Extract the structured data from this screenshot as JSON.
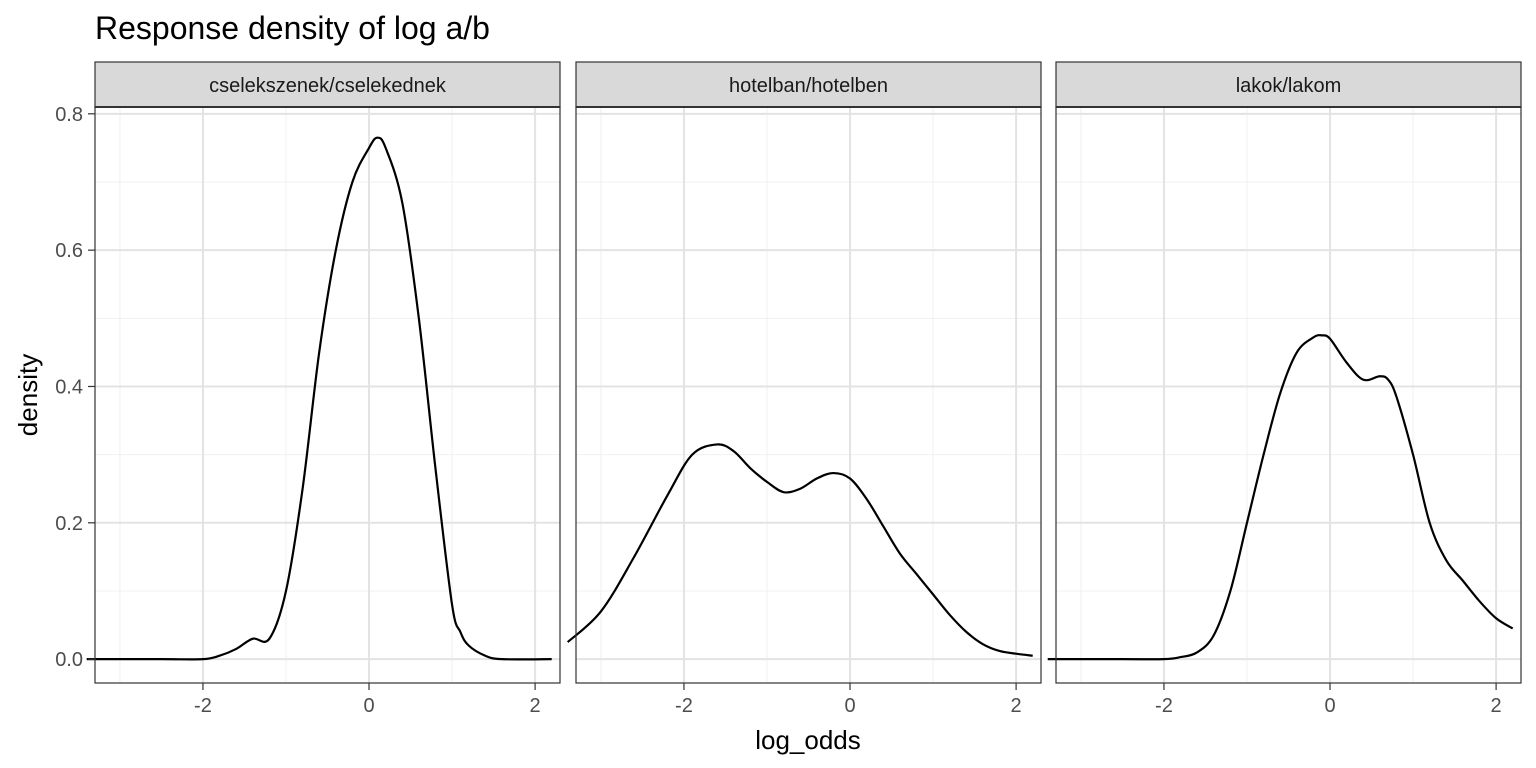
{
  "chart_data": {
    "type": "line",
    "title": "Response density of log a/b",
    "xlabel": "log_odds",
    "ylabel": "density",
    "xlim": [
      -3.3,
      2.3
    ],
    "ylim": [
      -0.035,
      0.81
    ],
    "x_ticks": [
      -2,
      0,
      2
    ],
    "x_tick_labels": [
      "-2",
      "0",
      "2"
    ],
    "y_ticks": [
      0.0,
      0.2,
      0.4,
      0.6,
      0.8
    ],
    "y_tick_labels": [
      "0.0",
      "0.2",
      "0.4",
      "0.6",
      "0.8"
    ],
    "grid": true,
    "panels": [
      {
        "label": "cselekszenek/cselekednek",
        "x": [
          -3.4,
          -2.5,
          -2.0,
          -1.8,
          -1.6,
          -1.4,
          -1.2,
          -1.0,
          -0.8,
          -0.6,
          -0.4,
          -0.2,
          0.0,
          0.1,
          0.2,
          0.4,
          0.6,
          0.8,
          1.0,
          1.1,
          1.2,
          1.4,
          1.6,
          2.2
        ],
        "y": [
          0.0,
          0.0,
          0.0,
          0.005,
          0.015,
          0.03,
          0.03,
          0.1,
          0.25,
          0.45,
          0.6,
          0.7,
          0.75,
          0.765,
          0.75,
          0.67,
          0.5,
          0.28,
          0.08,
          0.04,
          0.02,
          0.005,
          0.0,
          0.0
        ]
      },
      {
        "label": "hotelban/hotelben",
        "x": [
          -3.4,
          -3.0,
          -2.6,
          -2.2,
          -1.9,
          -1.6,
          -1.4,
          -1.2,
          -1.0,
          -0.8,
          -0.6,
          -0.4,
          -0.2,
          0.0,
          0.2,
          0.4,
          0.6,
          0.8,
          1.0,
          1.2,
          1.4,
          1.6,
          1.8,
          2.0,
          2.2
        ],
        "y": [
          0.025,
          0.07,
          0.15,
          0.24,
          0.3,
          0.315,
          0.305,
          0.28,
          0.26,
          0.245,
          0.25,
          0.265,
          0.273,
          0.265,
          0.235,
          0.195,
          0.155,
          0.125,
          0.095,
          0.065,
          0.04,
          0.022,
          0.012,
          0.008,
          0.005
        ]
      },
      {
        "label": "lakok/lakom",
        "x": [
          -3.4,
          -2.5,
          -2.0,
          -1.8,
          -1.6,
          -1.4,
          -1.2,
          -1.0,
          -0.8,
          -0.6,
          -0.4,
          -0.2,
          -0.1,
          0.0,
          0.2,
          0.4,
          0.6,
          0.7,
          0.8,
          1.0,
          1.2,
          1.4,
          1.6,
          1.8,
          2.0,
          2.2
        ],
        "y": [
          0.0,
          0.0,
          0.0,
          0.003,
          0.01,
          0.035,
          0.1,
          0.2,
          0.3,
          0.39,
          0.45,
          0.472,
          0.475,
          0.47,
          0.435,
          0.41,
          0.415,
          0.41,
          0.385,
          0.3,
          0.2,
          0.145,
          0.115,
          0.085,
          0.06,
          0.045
        ]
      }
    ]
  }
}
